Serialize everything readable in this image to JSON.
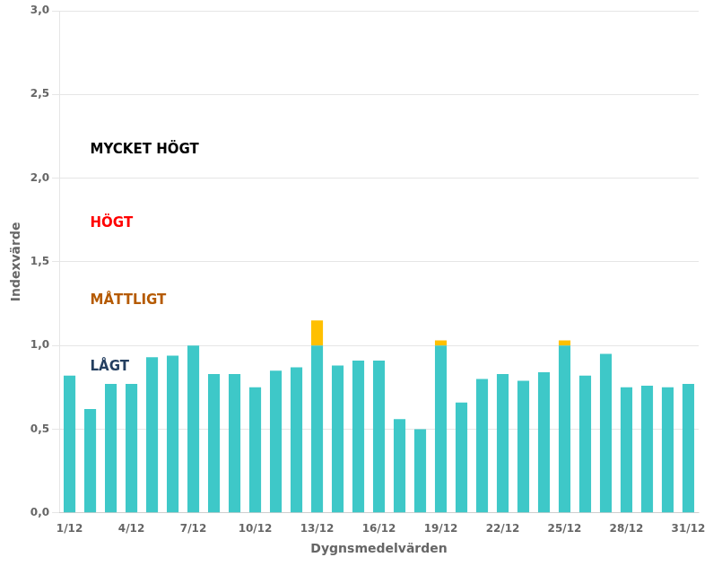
{
  "chart_data": {
    "type": "bar",
    "stacked": true,
    "x_label": "Dygnsmedelvärden",
    "y_label": "Indexvärde",
    "categories": [
      "1/12",
      null,
      null,
      "4/12",
      null,
      null,
      "7/12",
      null,
      null,
      "10/12",
      null,
      null,
      "13/12",
      null,
      null,
      "16/12",
      null,
      null,
      "19/12",
      null,
      null,
      "22/12",
      null,
      null,
      "25/12",
      null,
      null,
      "28/12",
      null,
      null,
      "31/12"
    ],
    "series": [
      {
        "color": "#3EC8C8",
        "values": [
          0.82,
          0.62,
          0.77,
          0.77,
          0.93,
          0.94,
          1.0,
          0.83,
          0.83,
          0.75,
          0.85,
          0.87,
          1.0,
          0.88,
          0.91,
          0.91,
          0.56,
          0.5,
          1.0,
          0.66,
          0.8,
          0.83,
          0.79,
          0.84,
          1.0,
          0.82,
          0.95,
          0.75,
          0.76,
          0.75,
          0.77
        ]
      },
      {
        "color": "#FFC000",
        "values": [
          0,
          0,
          0,
          0,
          0,
          0,
          0,
          0,
          0,
          0,
          0,
          0,
          0.15,
          0,
          0,
          0,
          0,
          0,
          0.03,
          0,
          0,
          0,
          0,
          0,
          0.03,
          0,
          0,
          0,
          0,
          0,
          0
        ]
      }
    ],
    "ylim": [
      0,
      3.0
    ],
    "yticks": [
      {
        "value": 0.0,
        "label": "0,0"
      },
      {
        "value": 0.5,
        "label": "0,5"
      },
      {
        "value": 1.0,
        "label": "1,0"
      },
      {
        "value": 1.5,
        "label": "1,5"
      },
      {
        "value": 2.0,
        "label": "2,0"
      },
      {
        "value": 2.5,
        "label": "2,5"
      },
      {
        "value": 3.0,
        "label": "3,0"
      }
    ],
    "grid": true,
    "annotations": [
      {
        "text": "LÅGT",
        "y": 0.87,
        "color": "#243F60"
      },
      {
        "text": "MÅTTLIGT",
        "y": 1.27,
        "color": "#B55A00"
      },
      {
        "text": "HÖGT",
        "y": 1.73,
        "color": "#FF0000"
      },
      {
        "text": "MYCKET HÖGT",
        "y": 2.17,
        "color": "#000000"
      }
    ]
  }
}
